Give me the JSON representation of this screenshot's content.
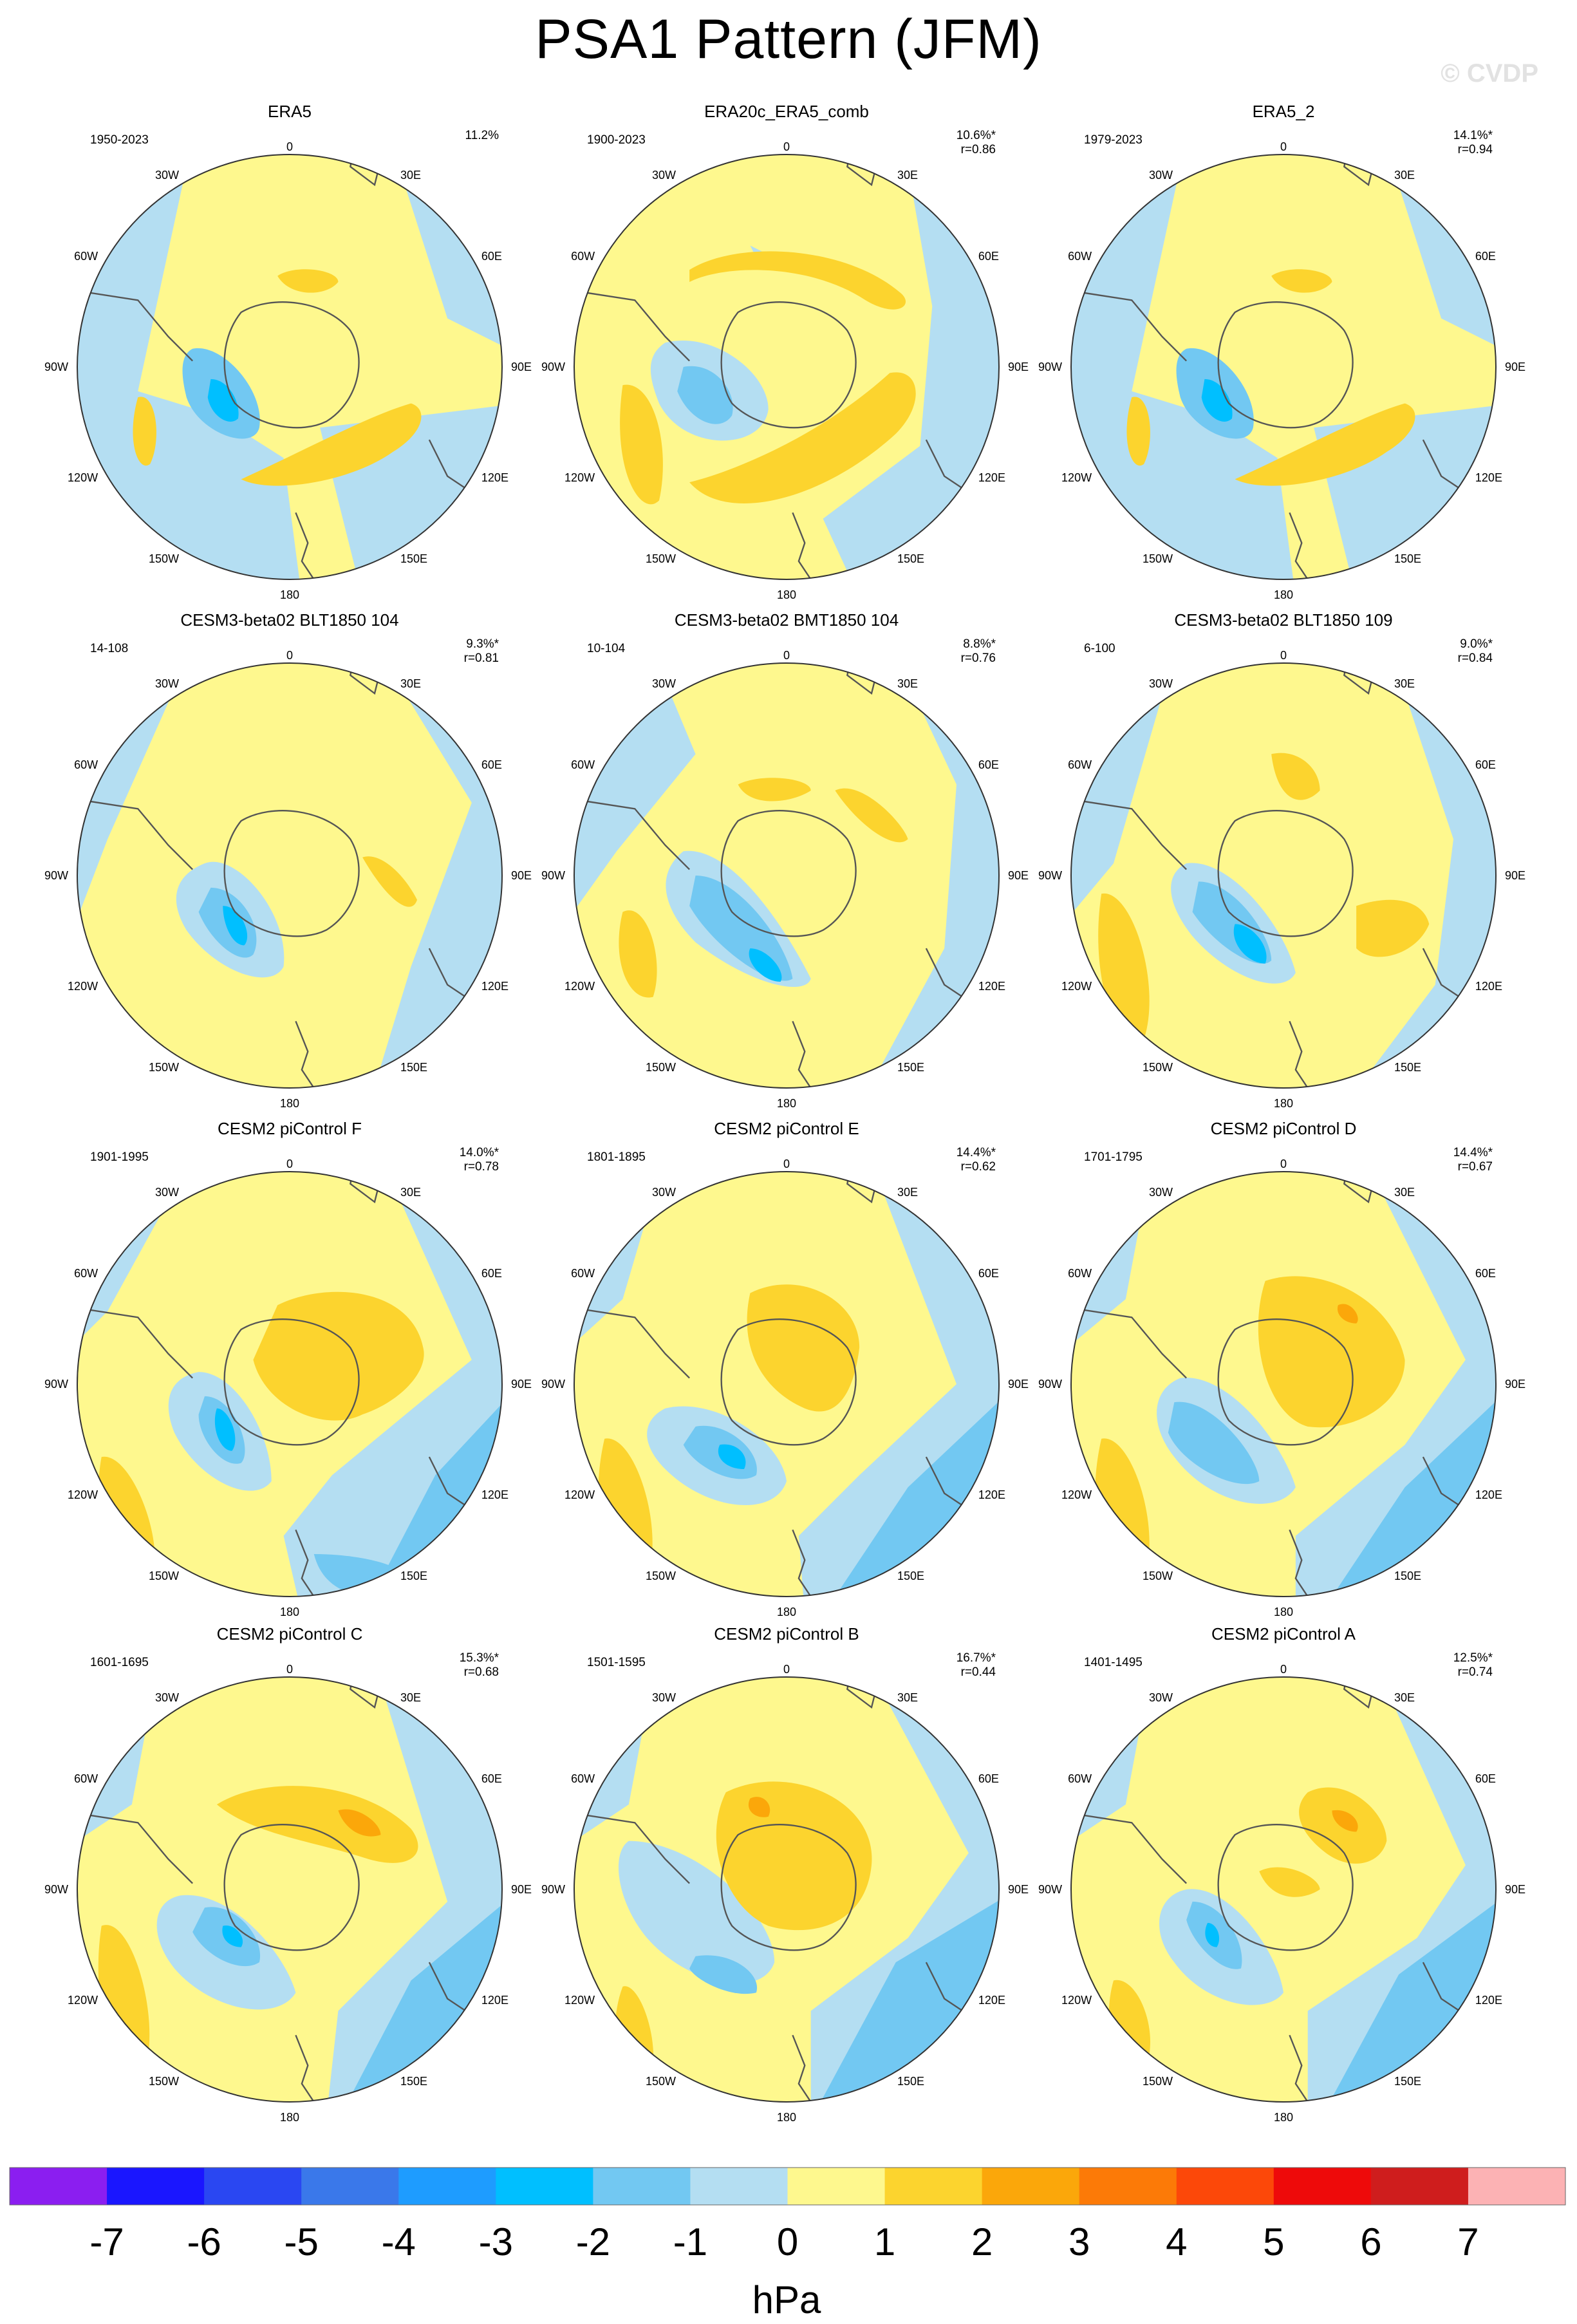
{
  "title": "PSA1 Pattern (JFM)",
  "watermark": "© CVDP",
  "colorbar": {
    "unit": "hPa",
    "labels": [
      "-7",
      "-6",
      "-5",
      "-4",
      "-3",
      "-2",
      "-1",
      "0",
      "1",
      "2",
      "3",
      "4",
      "5",
      "6",
      "7"
    ],
    "colors": [
      "#8b1ef0",
      "#1a16ff",
      "#2a47f2",
      "#3a78ea",
      "#1e9cff",
      "#00bfff",
      "#72c8f2",
      "#b4def2",
      "#fef88e",
      "#fcd42e",
      "#fba70a",
      "#fc7a07",
      "#fc4809",
      "#ee0a0a",
      "#cf1d1d",
      "#fcb2b4"
    ]
  },
  "map_labels": {
    "top": "0",
    "bottom": "180",
    "left": [
      "30W",
      "60W",
      "90W",
      "120W",
      "150W"
    ],
    "right": [
      "30E",
      "60E",
      "90E",
      "120E",
      "150E"
    ]
  },
  "panels": [
    {
      "title": "ERA5",
      "years": "1950-2023",
      "pct": "11.2%",
      "r": "",
      "variant": "era"
    },
    {
      "title": "ERA20c_ERA5_comb",
      "years": "1900-2023",
      "pct": "10.6%*",
      "r": "r=0.86",
      "variant": "era20c"
    },
    {
      "title": "ERA5_2",
      "years": "1979-2023",
      "pct": "14.1%*",
      "r": "r=0.94",
      "variant": "era"
    },
    {
      "title": "CESM3-beta02 BLT1850 104",
      "years": "14-108",
      "pct": "9.3%*",
      "r": "r=0.81",
      "variant": "cesm3a"
    },
    {
      "title": "CESM3-beta02 BMT1850 104",
      "years": "10-104",
      "pct": "8.8%*",
      "r": "r=0.76",
      "variant": "cesm3b"
    },
    {
      "title": "CESM3-beta02 BLT1850 109",
      "years": "6-100",
      "pct": "9.0%*",
      "r": "r=0.84",
      "variant": "cesm3c"
    },
    {
      "title": "CESM2 piControl F",
      "years": "1901-1995",
      "pct": "14.0%*",
      "r": "r=0.78",
      "variant": "picF"
    },
    {
      "title": "CESM2 piControl E",
      "years": "1801-1895",
      "pct": "14.4%*",
      "r": "r=0.62",
      "variant": "picE"
    },
    {
      "title": "CESM2 piControl D",
      "years": "1701-1795",
      "pct": "14.4%*",
      "r": "r=0.67",
      "variant": "picD"
    },
    {
      "title": "CESM2 piControl C",
      "years": "1601-1695",
      "pct": "15.3%*",
      "r": "r=0.68",
      "variant": "picC"
    },
    {
      "title": "CESM2 piControl B",
      "years": "1501-1595",
      "pct": "16.7%*",
      "r": "r=0.44",
      "variant": "picB"
    },
    {
      "title": "CESM2 piControl A",
      "years": "1401-1495",
      "pct": "12.5%*",
      "r": "r=0.74",
      "variant": "picA"
    }
  ]
}
